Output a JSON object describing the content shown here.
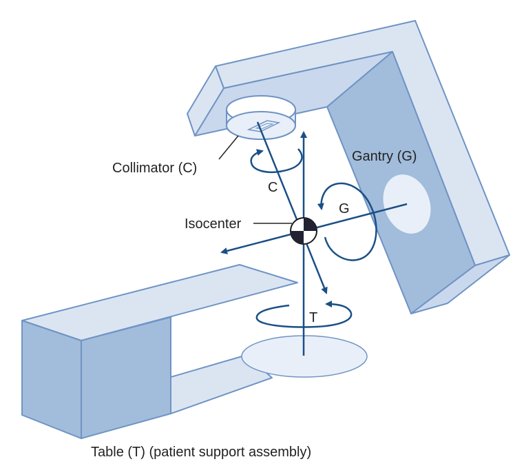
{
  "labels": {
    "collimator": "Collimator (C)",
    "gantry": "Gantry (G)",
    "isocenter": "Isocenter",
    "collimator_axis": "C",
    "gantry_axis": "G",
    "table_axis": "T",
    "table": "Table (T) (patient support assembly)"
  },
  "colors": {
    "body_light": "#dbe5f2",
    "body_mid": "#b9cde6",
    "body_dark": "#a2bcdb",
    "outline": "#6f93c4",
    "axis": "#1a4f86",
    "disc": "#e9eff8",
    "text": "#222222"
  }
}
